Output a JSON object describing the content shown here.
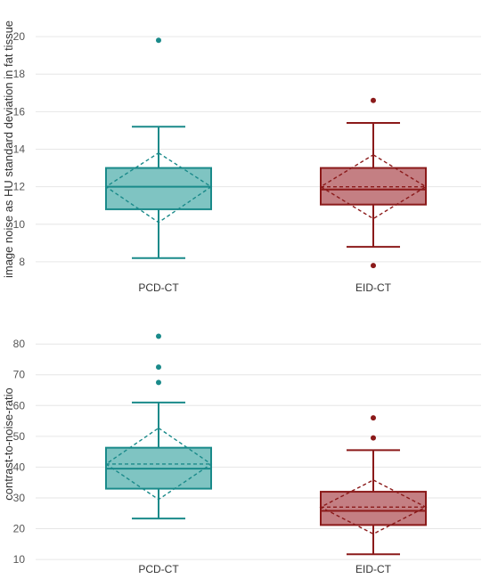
{
  "chart_data": [
    {
      "type": "box",
      "ylabel": "image noise as HU standard deviation in fat tissue",
      "ylim": [
        7,
        21
      ],
      "yticks": [
        8,
        10,
        12,
        14,
        16,
        18,
        20
      ],
      "grid": true,
      "categories": [
        "PCD-CT",
        "EID-CT"
      ],
      "series": [
        {
          "q1": 10.8,
          "median": 12.0,
          "q3": 13.0,
          "whisker_low": 8.2,
          "whisker_high": 15.2,
          "mean": 12.0,
          "mean_ci_low": 10.1,
          "mean_ci_high": 13.8,
          "outliers": [
            19.8
          ],
          "color": "#1a8a8a",
          "fill": "#7fc4c2"
        },
        {
          "q1": 11.05,
          "median": 11.85,
          "q3": 13.0,
          "whisker_low": 8.8,
          "whisker_high": 15.4,
          "mean": 12.0,
          "mean_ci_low": 10.3,
          "mean_ci_high": 13.7,
          "outliers": [
            16.6,
            7.8
          ],
          "color": "#8b1a1a",
          "fill": "#c47f83"
        }
      ]
    },
    {
      "type": "box",
      "ylabel": "contrast-to-noise-ratio",
      "ylim": [
        8,
        87
      ],
      "yticks": [
        10,
        20,
        30,
        40,
        50,
        60,
        70,
        80
      ],
      "grid": true,
      "categories": [
        "PCD-CT",
        "EID-CT"
      ],
      "series": [
        {
          "q1": 33.0,
          "median": 39.5,
          "q3": 46.3,
          "whisker_low": 23.3,
          "whisker_high": 61.0,
          "mean": 41.0,
          "mean_ci_low": 29.5,
          "mean_ci_high": 52.7,
          "outliers": [
            82.5,
            72.5,
            67.5
          ],
          "color": "#1a8a8a",
          "fill": "#7fc4c2"
        },
        {
          "q1": 21.2,
          "median": 25.8,
          "q3": 32.0,
          "whisker_low": 11.7,
          "whisker_high": 45.5,
          "mean": 27.0,
          "mean_ci_low": 18.3,
          "mean_ci_high": 35.8,
          "outliers": [
            56.0,
            49.5
          ],
          "color": "#8b1a1a",
          "fill": "#c47f83"
        }
      ]
    }
  ]
}
